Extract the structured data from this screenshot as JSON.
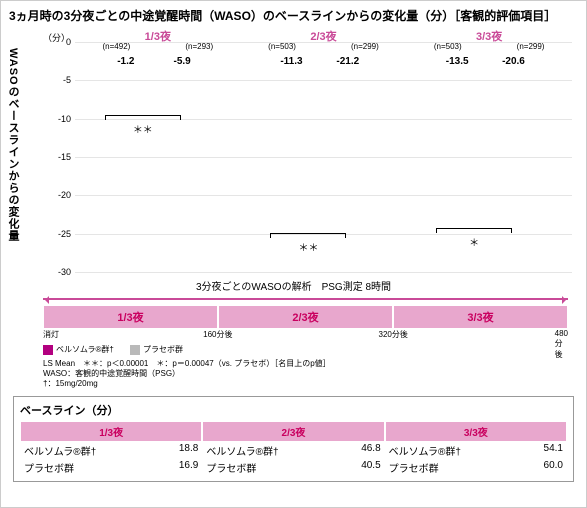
{
  "title": "3ヵ月時の3分夜ごとの中途覚醒時間（WASO）のベースラインからの変化量（分）［客観的評価項目］",
  "yaxis": {
    "title": "WASOのベースラインからの変化量",
    "unit": "（分）",
    "min": -30,
    "max": 0,
    "step": 5,
    "ticks": [
      0,
      -5,
      -10,
      -15,
      -20,
      -25,
      -30
    ]
  },
  "colors": {
    "drug": "#b2007f",
    "placebo": "#b9b9b9",
    "accent": "#c94a98",
    "band": "#e8a7cd",
    "grid": "#e5e5e5"
  },
  "groups": [
    {
      "label": "1/3夜",
      "n_placebo": "(n=492)",
      "n_drug": "(n=293)",
      "placebo": -1.2,
      "drug": -5.9,
      "sig": "＊＊"
    },
    {
      "label": "2/3夜",
      "n_placebo": "(n=503)",
      "n_drug": "(n=299)",
      "placebo": -11.3,
      "drug": -21.2,
      "sig": "＊＊"
    },
    {
      "label": "3/3夜",
      "n_placebo": "(n=503)",
      "n_drug": "(n=299)",
      "placebo": -13.5,
      "drug": -20.6,
      "sig": "＊"
    }
  ],
  "subtitle": "3分夜ごとのWASOの解析　PSG測定 8時間",
  "timeline": {
    "segments": [
      "1/3夜",
      "2/3夜",
      "3/3夜"
    ],
    "ticks": [
      {
        "pos": 0,
        "label": "消灯"
      },
      {
        "pos": 33.3,
        "label": "160分後"
      },
      {
        "pos": 66.7,
        "label": "320分後"
      },
      {
        "pos": 100,
        "label": "480分後"
      }
    ]
  },
  "legend": {
    "drug": "ベルソムラ®群†",
    "placebo": "プラセボ群",
    "note1": "LS Mean　＊＊：p＜0.00001　＊：p＝0.00047（vs. プラセボ）［名目上のp値］",
    "note2": "WASO：客観的中途覚醒時間（PSG）",
    "note3": "†：15mg/20mg"
  },
  "baseline": {
    "title": "ベースライン（分）",
    "headers": [
      "1/3夜",
      "2/3夜",
      "3/3夜"
    ],
    "rows": [
      {
        "label": "ベルソムラ®群†",
        "vals": [
          "18.8",
          "46.8",
          "54.1"
        ]
      },
      {
        "label": "プラセボ群",
        "vals": [
          "16.9",
          "40.5",
          "60.0"
        ]
      }
    ]
  }
}
